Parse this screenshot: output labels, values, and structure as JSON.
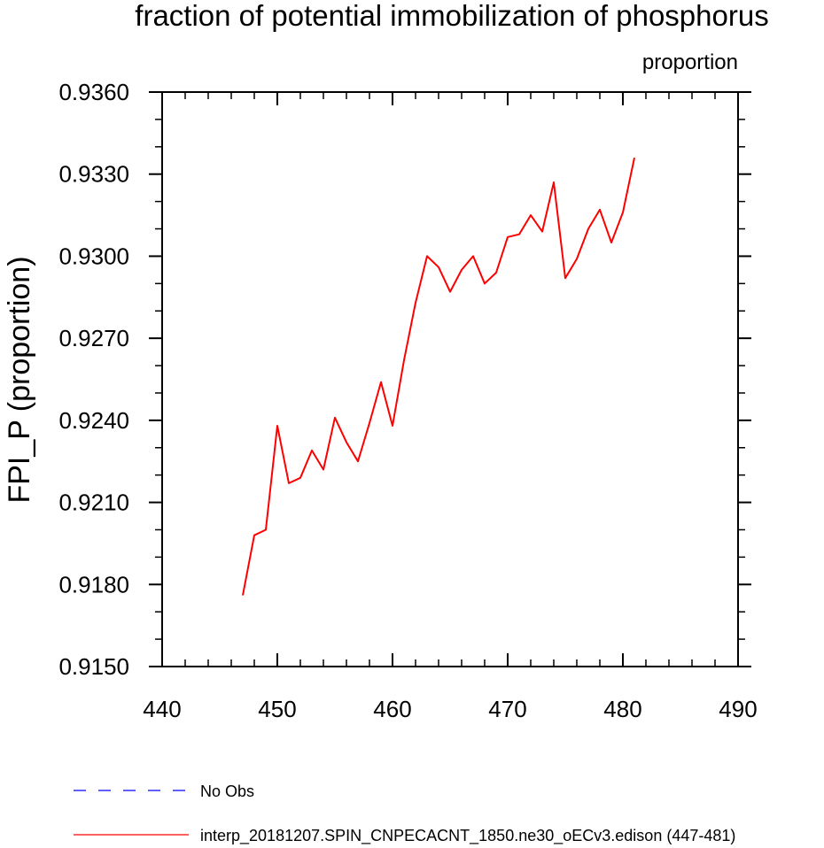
{
  "chart_data": {
    "type": "line",
    "title": "fraction of potential immobilization of phosphorus",
    "units_label": "proportion",
    "ylabel": "FPI_P  (proportion)",
    "xlabel": "",
    "xlim": [
      440,
      490
    ],
    "ylim": [
      0.915,
      0.936
    ],
    "x_ticks": [
      "440",
      "450",
      "460",
      "470",
      "480",
      "490"
    ],
    "y_ticks": [
      "0.9150",
      "0.9180",
      "0.9210",
      "0.9240",
      "0.9270",
      "0.9300",
      "0.9330",
      "0.9360"
    ],
    "grid": false,
    "legend_position": "bottom",
    "series": [
      {
        "name": "interp_20181207.SPIN_CNPECACNT_1850.ne30_oECv3.edison (447-481)",
        "color": "#ff0000",
        "style": "solid",
        "x": [
          447,
          448,
          449,
          450,
          451,
          452,
          453,
          454,
          455,
          456,
          457,
          458,
          459,
          460,
          461,
          462,
          463,
          464,
          465,
          466,
          467,
          468,
          469,
          470,
          471,
          472,
          473,
          474,
          475,
          476,
          477,
          478,
          479,
          480,
          481
        ],
        "y": [
          0.9176,
          0.9198,
          0.92,
          0.9238,
          0.9217,
          0.9219,
          0.9229,
          0.9222,
          0.9241,
          0.9232,
          0.9225,
          0.9239,
          0.9254,
          0.9238,
          0.9262,
          0.9283,
          0.93,
          0.9296,
          0.9287,
          0.9295,
          0.93,
          0.929,
          0.9294,
          0.9307,
          0.9308,
          0.9315,
          0.9309,
          0.9327,
          0.9292,
          0.9299,
          0.931,
          0.9317,
          0.9305,
          0.9316,
          0.9336
        ]
      }
    ],
    "legend": [
      {
        "label": "No Obs",
        "color": "#0000ff",
        "style": "dashed"
      },
      {
        "label": "interp_20181207.SPIN_CNPECACNT_1850.ne30_oECv3.edison (447-481)",
        "color": "#ff0000",
        "style": "solid"
      }
    ]
  }
}
